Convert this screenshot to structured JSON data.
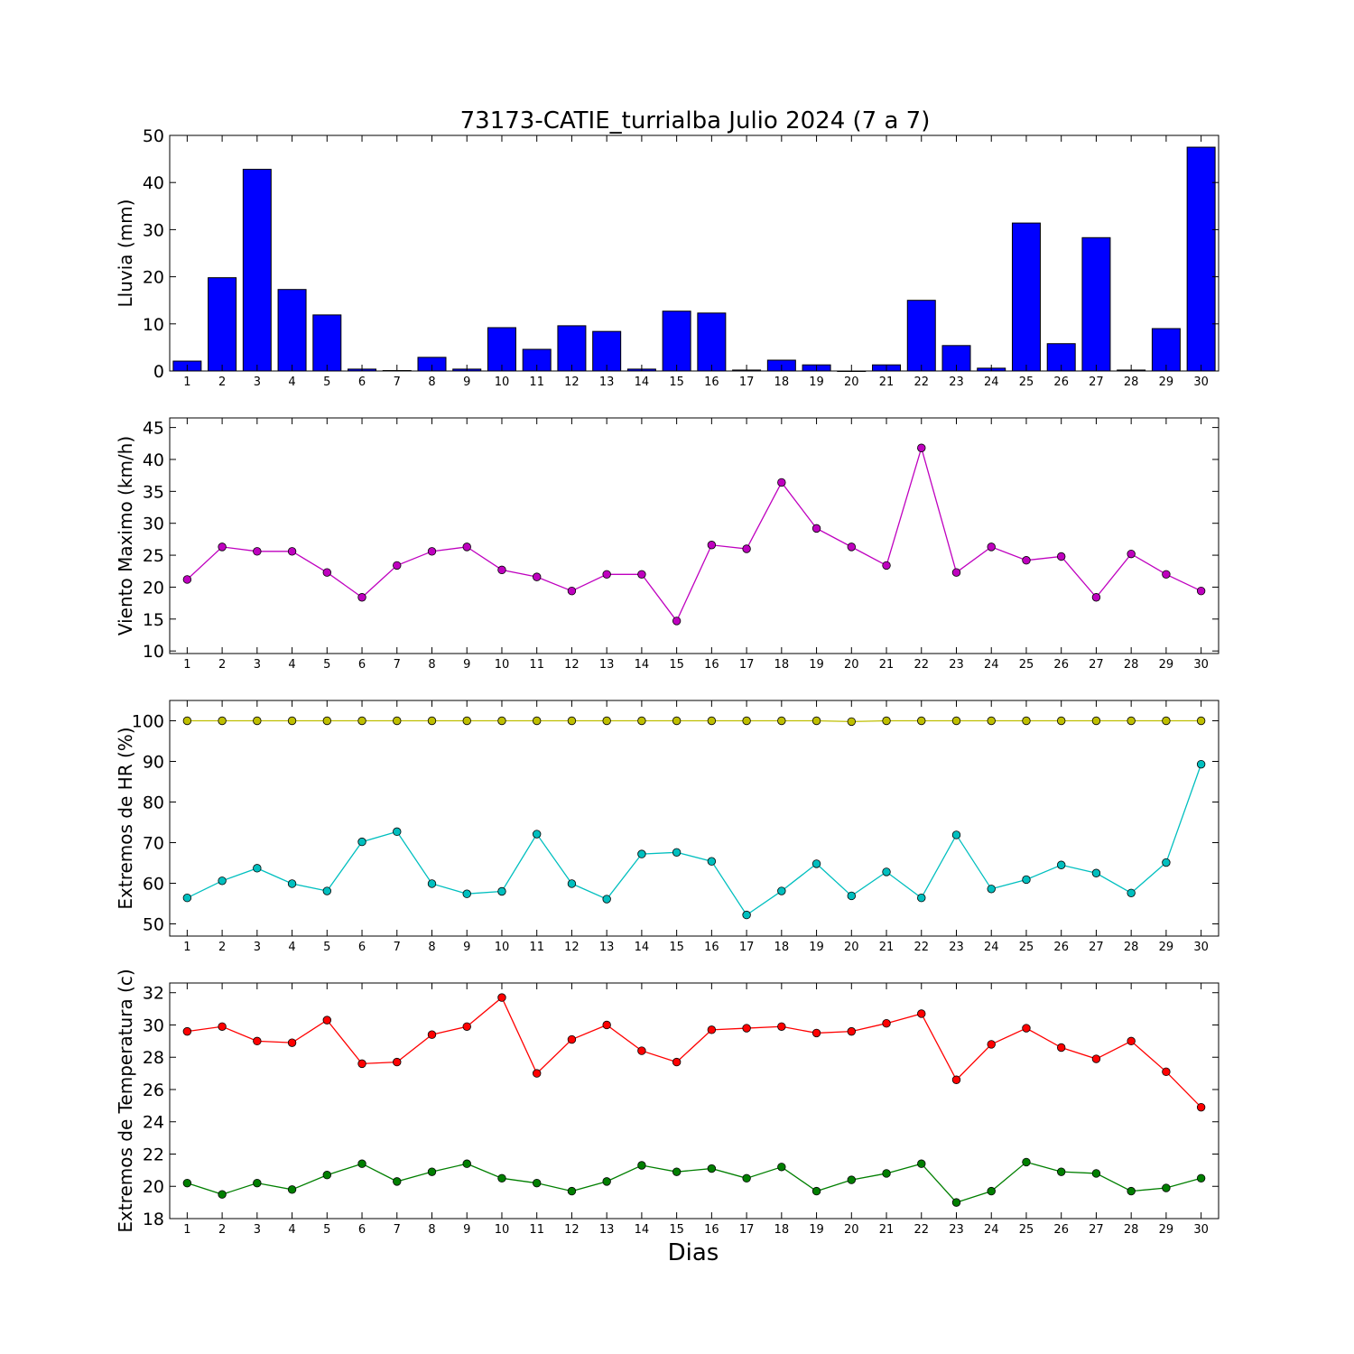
{
  "title": "73173-CATIE_turrialba Julio 2024  (7 a 7)",
  "xlabel": "Dias",
  "chart_data": [
    {
      "type": "bar",
      "ylabel": "Lluvia (mm)",
      "ylim": [
        0,
        50
      ],
      "yticks": [
        0,
        10,
        20,
        30,
        40,
        50
      ],
      "x": [
        1,
        2,
        3,
        4,
        5,
        6,
        7,
        8,
        9,
        10,
        11,
        12,
        13,
        14,
        15,
        16,
        17,
        18,
        19,
        20,
        21,
        22,
        23,
        24,
        25,
        26,
        27,
        28,
        29,
        30
      ],
      "series": [
        {
          "color": "#0000ff",
          "values": [
            2.1,
            19.8,
            42.8,
            17.3,
            11.9,
            0.4,
            0.1,
            2.9,
            0.4,
            9.2,
            4.6,
            9.6,
            8.4,
            0.4,
            12.7,
            12.3,
            0.2,
            2.3,
            1.3,
            0.0,
            1.3,
            15.0,
            5.4,
            0.6,
            31.4,
            5.8,
            28.3,
            0.2,
            9.0,
            47.5
          ]
        }
      ]
    },
    {
      "type": "line",
      "ylabel": "Viento Maximo (km/h)",
      "ylim": [
        9.6,
        46.5
      ],
      "yticks": [
        10,
        15,
        20,
        25,
        30,
        35,
        40,
        45
      ],
      "x": [
        1,
        2,
        3,
        4,
        5,
        6,
        7,
        8,
        9,
        10,
        11,
        12,
        13,
        14,
        15,
        16,
        17,
        18,
        19,
        20,
        21,
        22,
        23,
        24,
        25,
        26,
        27,
        28,
        29,
        30
      ],
      "series": [
        {
          "color": "#bf00bf",
          "values": [
            21.2,
            26.3,
            25.6,
            25.6,
            22.3,
            18.4,
            23.4,
            25.6,
            26.3,
            22.7,
            21.6,
            19.4,
            22.0,
            22.0,
            14.7,
            26.6,
            26.0,
            36.4,
            29.2,
            26.3,
            23.4,
            41.8,
            22.3,
            26.3,
            24.2,
            24.8,
            18.4,
            25.2,
            22.0,
            19.4
          ]
        }
      ]
    },
    {
      "type": "line",
      "ylabel": "Extremos de HR (%)",
      "ylim": [
        47,
        105
      ],
      "yticks": [
        50,
        60,
        70,
        80,
        90,
        100
      ],
      "x": [
        1,
        2,
        3,
        4,
        5,
        6,
        7,
        8,
        9,
        10,
        11,
        12,
        13,
        14,
        15,
        16,
        17,
        18,
        19,
        20,
        21,
        22,
        23,
        24,
        25,
        26,
        27,
        28,
        29,
        30
      ],
      "series": [
        {
          "color": "#bfbf00",
          "values": [
            100,
            100,
            100,
            100,
            100,
            100,
            100,
            100,
            100,
            100,
            100,
            100,
            100,
            100,
            100,
            100,
            100,
            100,
            100,
            99.8,
            100,
            100,
            100,
            100,
            100,
            100,
            100,
            100,
            100,
            100
          ]
        },
        {
          "color": "#00bfbf",
          "values": [
            56.4,
            60.6,
            63.7,
            59.9,
            58.1,
            70.2,
            72.7,
            59.9,
            57.4,
            58.0,
            72.1,
            59.9,
            56.1,
            67.2,
            67.6,
            65.4,
            52.2,
            58.1,
            64.8,
            56.9,
            62.8,
            56.4,
            71.9,
            58.6,
            60.9,
            64.5,
            62.5,
            57.6,
            65.1,
            89.3
          ]
        }
      ]
    },
    {
      "type": "line",
      "ylabel": "Extremos de Temperatura (c)",
      "ylim": [
        18,
        32.6
      ],
      "yticks": [
        18,
        20,
        22,
        24,
        26,
        28,
        30,
        32
      ],
      "x": [
        1,
        2,
        3,
        4,
        5,
        6,
        7,
        8,
        9,
        10,
        11,
        12,
        13,
        14,
        15,
        16,
        17,
        18,
        19,
        20,
        21,
        22,
        23,
        24,
        25,
        26,
        27,
        28,
        29,
        30
      ],
      "series": [
        {
          "color": "#ff0000",
          "values": [
            29.6,
            29.9,
            29.0,
            28.9,
            30.3,
            27.6,
            27.7,
            29.4,
            29.9,
            31.7,
            27.0,
            29.1,
            30.0,
            28.4,
            27.7,
            29.7,
            29.8,
            29.9,
            29.5,
            29.6,
            30.1,
            30.7,
            26.6,
            28.8,
            29.8,
            28.6,
            27.9,
            29.0,
            27.1,
            24.9
          ]
        },
        {
          "color": "#007f00",
          "values": [
            20.2,
            19.5,
            20.2,
            19.8,
            20.7,
            21.4,
            20.3,
            20.9,
            21.4,
            20.5,
            20.2,
            19.7,
            20.3,
            21.3,
            20.9,
            21.1,
            20.5,
            21.2,
            19.7,
            20.4,
            20.8,
            21.4,
            19.0,
            19.7,
            21.5,
            20.9,
            20.8,
            19.7,
            19.9,
            20.5
          ]
        }
      ]
    }
  ]
}
